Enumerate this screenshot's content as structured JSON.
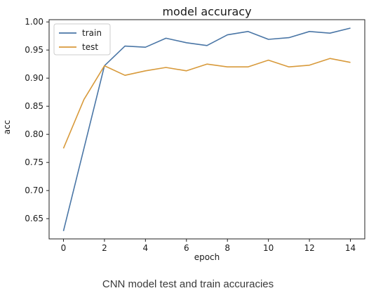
{
  "chart_data": {
    "type": "line",
    "title": "model accuracy",
    "xlabel": "epoch",
    "ylabel": "acc",
    "x": [
      0,
      1,
      2,
      3,
      4,
      5,
      6,
      7,
      8,
      9,
      10,
      11,
      12,
      13,
      14
    ],
    "series": [
      {
        "name": "train",
        "color": "#4a76a6",
        "values": [
          0.628,
          0.775,
          0.922,
          0.957,
          0.955,
          0.971,
          0.963,
          0.958,
          0.977,
          0.983,
          0.969,
          0.972,
          0.983,
          0.98,
          0.989
        ]
      },
      {
        "name": "test",
        "color": "#d89a3b",
        "values": [
          0.775,
          0.862,
          0.922,
          0.905,
          0.913,
          0.919,
          0.913,
          0.925,
          0.92,
          0.92,
          0.932,
          0.92,
          0.923,
          0.935,
          0.928
        ]
      }
    ],
    "xlim": [
      -0.7,
      14.7
    ],
    "ylim": [
      0.614,
      1.004
    ],
    "xticks": [
      "0",
      "2",
      "4",
      "6",
      "8",
      "10",
      "12",
      "14"
    ],
    "xtick_values": [
      0,
      2,
      4,
      6,
      8,
      10,
      12,
      14
    ],
    "yticks": [
      "0.65",
      "0.70",
      "0.75",
      "0.80",
      "0.85",
      "0.90",
      "0.95",
      "1.00"
    ],
    "ytick_values": [
      0.65,
      0.7,
      0.75,
      0.8,
      0.85,
      0.9,
      0.95,
      1.0
    ],
    "grid": false,
    "legend_position": "top-left"
  },
  "caption": "CNN model test and train accuracies"
}
